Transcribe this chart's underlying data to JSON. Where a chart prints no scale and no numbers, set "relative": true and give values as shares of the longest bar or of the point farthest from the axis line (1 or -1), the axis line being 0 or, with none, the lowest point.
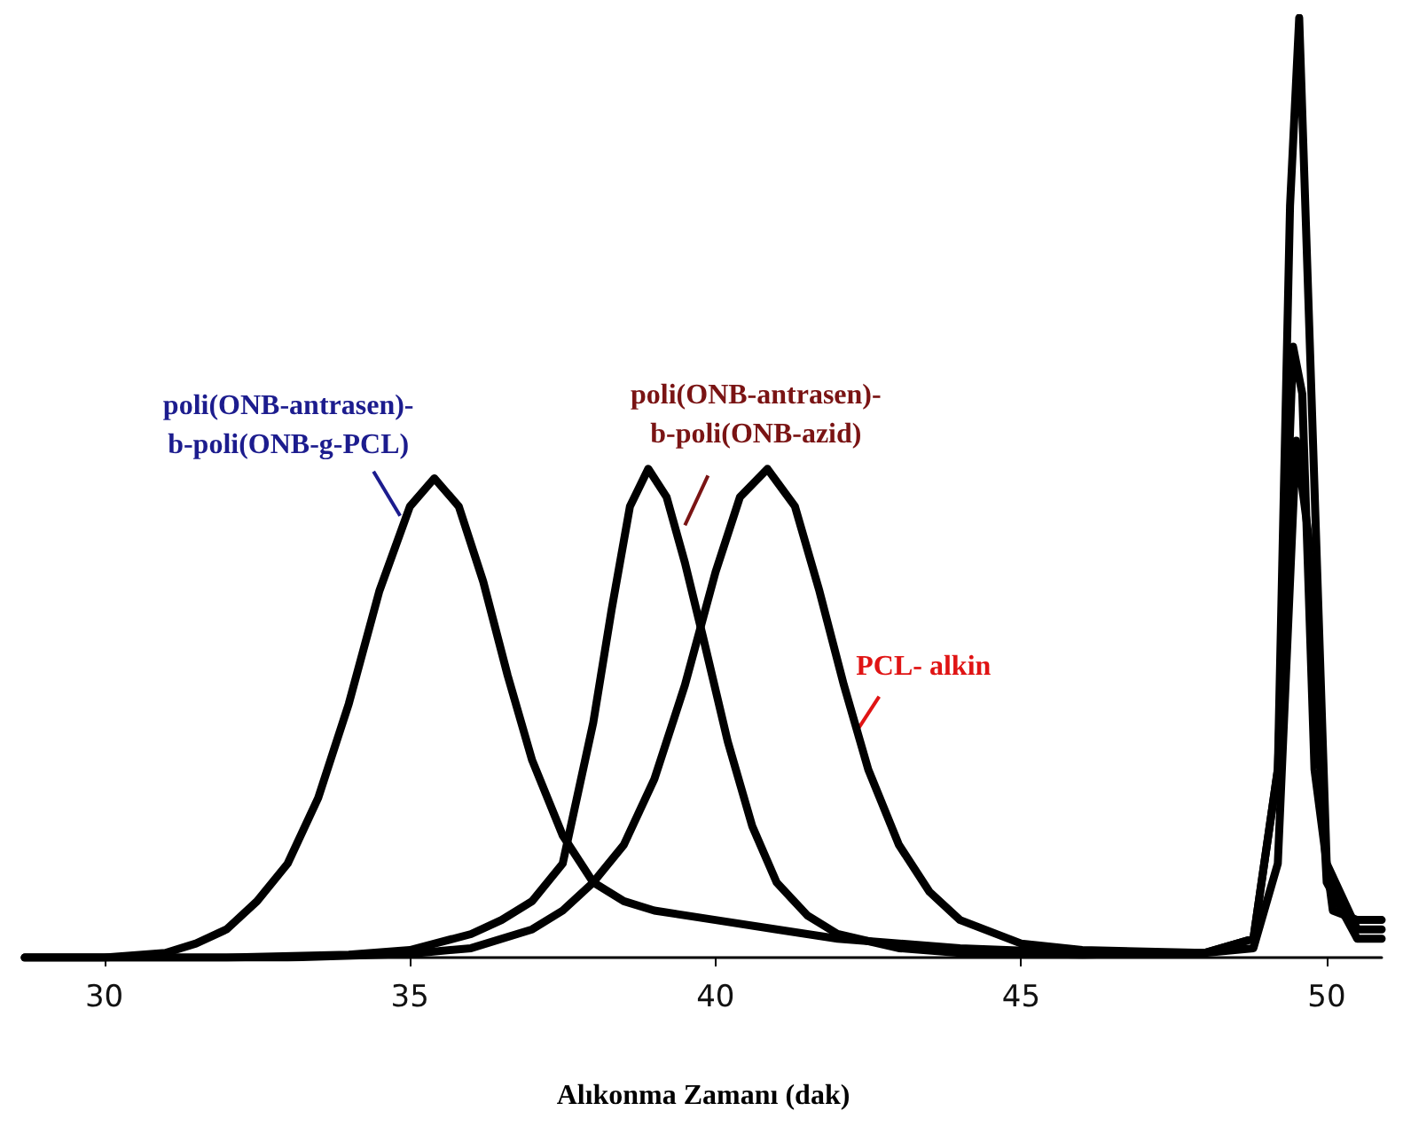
{
  "chart_data": {
    "type": "line",
    "relative": true,
    "xlabel": "Alıkonma Zamanı (dak)",
    "xlim": [
      28.7,
      50.9
    ],
    "xticks": [
      30,
      35,
      40,
      45,
      50
    ],
    "tick_labels": "x",
    "grid": false,
    "marker": "none",
    "line_style": "solid",
    "series": [
      {
        "color": "#000000",
        "x": [
          28.7,
          30,
          31,
          31.5,
          32,
          32.5,
          33,
          33.5,
          34,
          34.5,
          35,
          35.4,
          35.8,
          36.2,
          36.6,
          37,
          37.5,
          38,
          38.5,
          39,
          40,
          41,
          42,
          44,
          46,
          48,
          48.8,
          49.2,
          49.4,
          49.55,
          49.7,
          50,
          50.5,
          50.9
        ],
        "values": [
          0.0,
          0.0,
          0.005,
          0.015,
          0.03,
          0.06,
          0.1,
          0.17,
          0.27,
          0.39,
          0.48,
          0.51,
          0.48,
          0.4,
          0.3,
          0.21,
          0.13,
          0.08,
          0.06,
          0.05,
          0.04,
          0.03,
          0.02,
          0.01,
          0.005,
          0.005,
          0.02,
          0.2,
          0.8,
          1.0,
          0.7,
          0.1,
          0.03,
          0.03
        ]
      },
      {
        "color": "#000000",
        "x": [
          28.7,
          32,
          34,
          35,
          36,
          36.5,
          37,
          37.5,
          38,
          38.3,
          38.6,
          38.9,
          39.2,
          39.5,
          39.8,
          40.2,
          40.6,
          41,
          41.5,
          42,
          43,
          44,
          46,
          48,
          48.8,
          49.2,
          49.45,
          49.6,
          49.8,
          50.1,
          50.5,
          50.9
        ],
        "values": [
          0,
          0,
          0.003,
          0.008,
          0.025,
          0.04,
          0.06,
          0.1,
          0.25,
          0.37,
          0.48,
          0.52,
          0.49,
          0.42,
          0.34,
          0.23,
          0.14,
          0.08,
          0.045,
          0.025,
          0.01,
          0.005,
          0.003,
          0.005,
          0.02,
          0.2,
          0.65,
          0.6,
          0.2,
          0.05,
          0.04,
          0.04
        ]
      },
      {
        "color": "#000000",
        "x": [
          28.7,
          33,
          35,
          36,
          37,
          37.5,
          38,
          38.5,
          39,
          39.5,
          40,
          40.4,
          40.85,
          41.3,
          41.7,
          42.1,
          42.5,
          43,
          43.5,
          44,
          45,
          46,
          48,
          48.8,
          49.2,
          49.5,
          49.7,
          50,
          50.5,
          50.9
        ],
        "values": [
          0.0,
          0.0,
          0.004,
          0.01,
          0.03,
          0.05,
          0.08,
          0.12,
          0.19,
          0.29,
          0.41,
          0.49,
          0.52,
          0.48,
          0.39,
          0.29,
          0.2,
          0.12,
          0.07,
          0.04,
          0.015,
          0.008,
          0.005,
          0.01,
          0.1,
          0.55,
          0.45,
          0.08,
          0.02,
          0.02
        ]
      }
    ],
    "annotations": [
      {
        "text": "poli(ONB-antrasen)-\nb-poli(ONB-g-PCL)",
        "x": 34.84,
        "y": 0.47
      },
      {
        "text": "poli(ONB-antrasen)-\nb-poli(ONB-azid)",
        "x": 39.5,
        "y": 0.46
      },
      {
        "text": "PCL- alkin",
        "x": 42.3,
        "y": 0.24
      }
    ]
  }
}
